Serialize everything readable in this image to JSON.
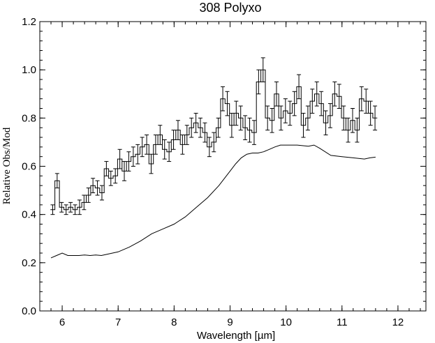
{
  "chart_data": {
    "type": "line",
    "title": "308 Polyxo",
    "xlabel": "Wavelength [µm]",
    "ylabel": "Relative Obs/Mod",
    "xlim": [
      5.6,
      12.5
    ],
    "ylim": [
      0.0,
      1.2
    ],
    "xticks": [
      "6",
      "7",
      "8",
      "9",
      "10",
      "11",
      "12"
    ],
    "yticks": [
      "0.0",
      "0.2",
      "0.4",
      "0.6",
      "0.8",
      "1.0",
      "1.2"
    ],
    "grid": false,
    "series": [
      {
        "style": "histogram-step-with-error-bars",
        "x": [
          5.83,
          5.91,
          5.99,
          6.07,
          6.15,
          6.23,
          6.31,
          6.39,
          6.47,
          6.55,
          6.63,
          6.71,
          6.79,
          6.87,
          6.95,
          7.03,
          7.11,
          7.19,
          7.27,
          7.35,
          7.43,
          7.51,
          7.59,
          7.67,
          7.75,
          7.83,
          7.91,
          7.99,
          8.07,
          8.15,
          8.23,
          8.31,
          8.39,
          8.47,
          8.55,
          8.63,
          8.71,
          8.79,
          8.87,
          8.95,
          9.03,
          9.11,
          9.19,
          9.27,
          9.35,
          9.43,
          9.51,
          9.59,
          9.67,
          9.75,
          9.83,
          9.91,
          9.99,
          10.07,
          10.15,
          10.23,
          10.31,
          10.39,
          10.47,
          10.55,
          10.63,
          10.71,
          10.79,
          10.87,
          10.95,
          11.03,
          11.11,
          11.19,
          11.27,
          11.35,
          11.43,
          11.51,
          11.59
        ],
        "y": [
          0.42,
          0.54,
          0.43,
          0.42,
          0.43,
          0.42,
          0.43,
          0.45,
          0.48,
          0.52,
          0.51,
          0.49,
          0.59,
          0.55,
          0.56,
          0.63,
          0.58,
          0.62,
          0.64,
          0.65,
          0.68,
          0.69,
          0.61,
          0.69,
          0.73,
          0.67,
          0.66,
          0.71,
          0.75,
          0.69,
          0.73,
          0.76,
          0.78,
          0.76,
          0.74,
          0.68,
          0.7,
          0.76,
          0.88,
          0.86,
          0.77,
          0.82,
          0.8,
          0.76,
          0.75,
          0.74,
          0.95,
          1.0,
          0.8,
          0.79,
          0.9,
          0.8,
          0.83,
          0.82,
          0.86,
          0.93,
          0.77,
          0.8,
          0.87,
          0.9,
          0.86,
          0.78,
          0.81,
          0.9,
          0.89,
          0.8,
          0.75,
          0.79,
          0.75,
          0.88,
          0.87,
          0.82,
          0.8
        ],
        "err": [
          0.02,
          0.03,
          0.02,
          0.02,
          0.02,
          0.02,
          0.03,
          0.03,
          0.03,
          0.03,
          0.03,
          0.03,
          0.03,
          0.03,
          0.03,
          0.04,
          0.04,
          0.04,
          0.04,
          0.04,
          0.04,
          0.04,
          0.04,
          0.04,
          0.04,
          0.04,
          0.04,
          0.04,
          0.04,
          0.04,
          0.04,
          0.04,
          0.04,
          0.04,
          0.04,
          0.04,
          0.04,
          0.04,
          0.05,
          0.05,
          0.05,
          0.05,
          0.05,
          0.05,
          0.05,
          0.05,
          0.05,
          0.05,
          0.05,
          0.05,
          0.05,
          0.05,
          0.05,
          0.05,
          0.05,
          0.05,
          0.05,
          0.05,
          0.05,
          0.05,
          0.05,
          0.05,
          0.05,
          0.05,
          0.05,
          0.05,
          0.05,
          0.05,
          0.05,
          0.05,
          0.05,
          0.05,
          0.05
        ]
      },
      {
        "style": "line",
        "x": [
          5.8,
          5.9,
          6.0,
          6.1,
          6.2,
          6.3,
          6.4,
          6.5,
          6.6,
          6.7,
          6.8,
          6.9,
          7.0,
          7.2,
          7.4,
          7.6,
          7.8,
          8.0,
          8.2,
          8.4,
          8.6,
          8.8,
          8.9,
          9.0,
          9.1,
          9.2,
          9.3,
          9.4,
          9.5,
          9.6,
          9.7,
          9.8,
          9.9,
          10.0,
          10.2,
          10.4,
          10.5,
          10.6,
          10.8,
          11.0,
          11.2,
          11.4,
          11.5,
          11.6
        ],
        "y": [
          0.22,
          0.23,
          0.24,
          0.23,
          0.23,
          0.23,
          0.232,
          0.23,
          0.232,
          0.23,
          0.235,
          0.24,
          0.245,
          0.265,
          0.29,
          0.32,
          0.34,
          0.36,
          0.39,
          0.43,
          0.47,
          0.52,
          0.55,
          0.58,
          0.61,
          0.635,
          0.65,
          0.655,
          0.655,
          0.66,
          0.67,
          0.68,
          0.688,
          0.688,
          0.688,
          0.683,
          0.688,
          0.675,
          0.645,
          0.64,
          0.635,
          0.63,
          0.635,
          0.638
        ]
      }
    ]
  }
}
